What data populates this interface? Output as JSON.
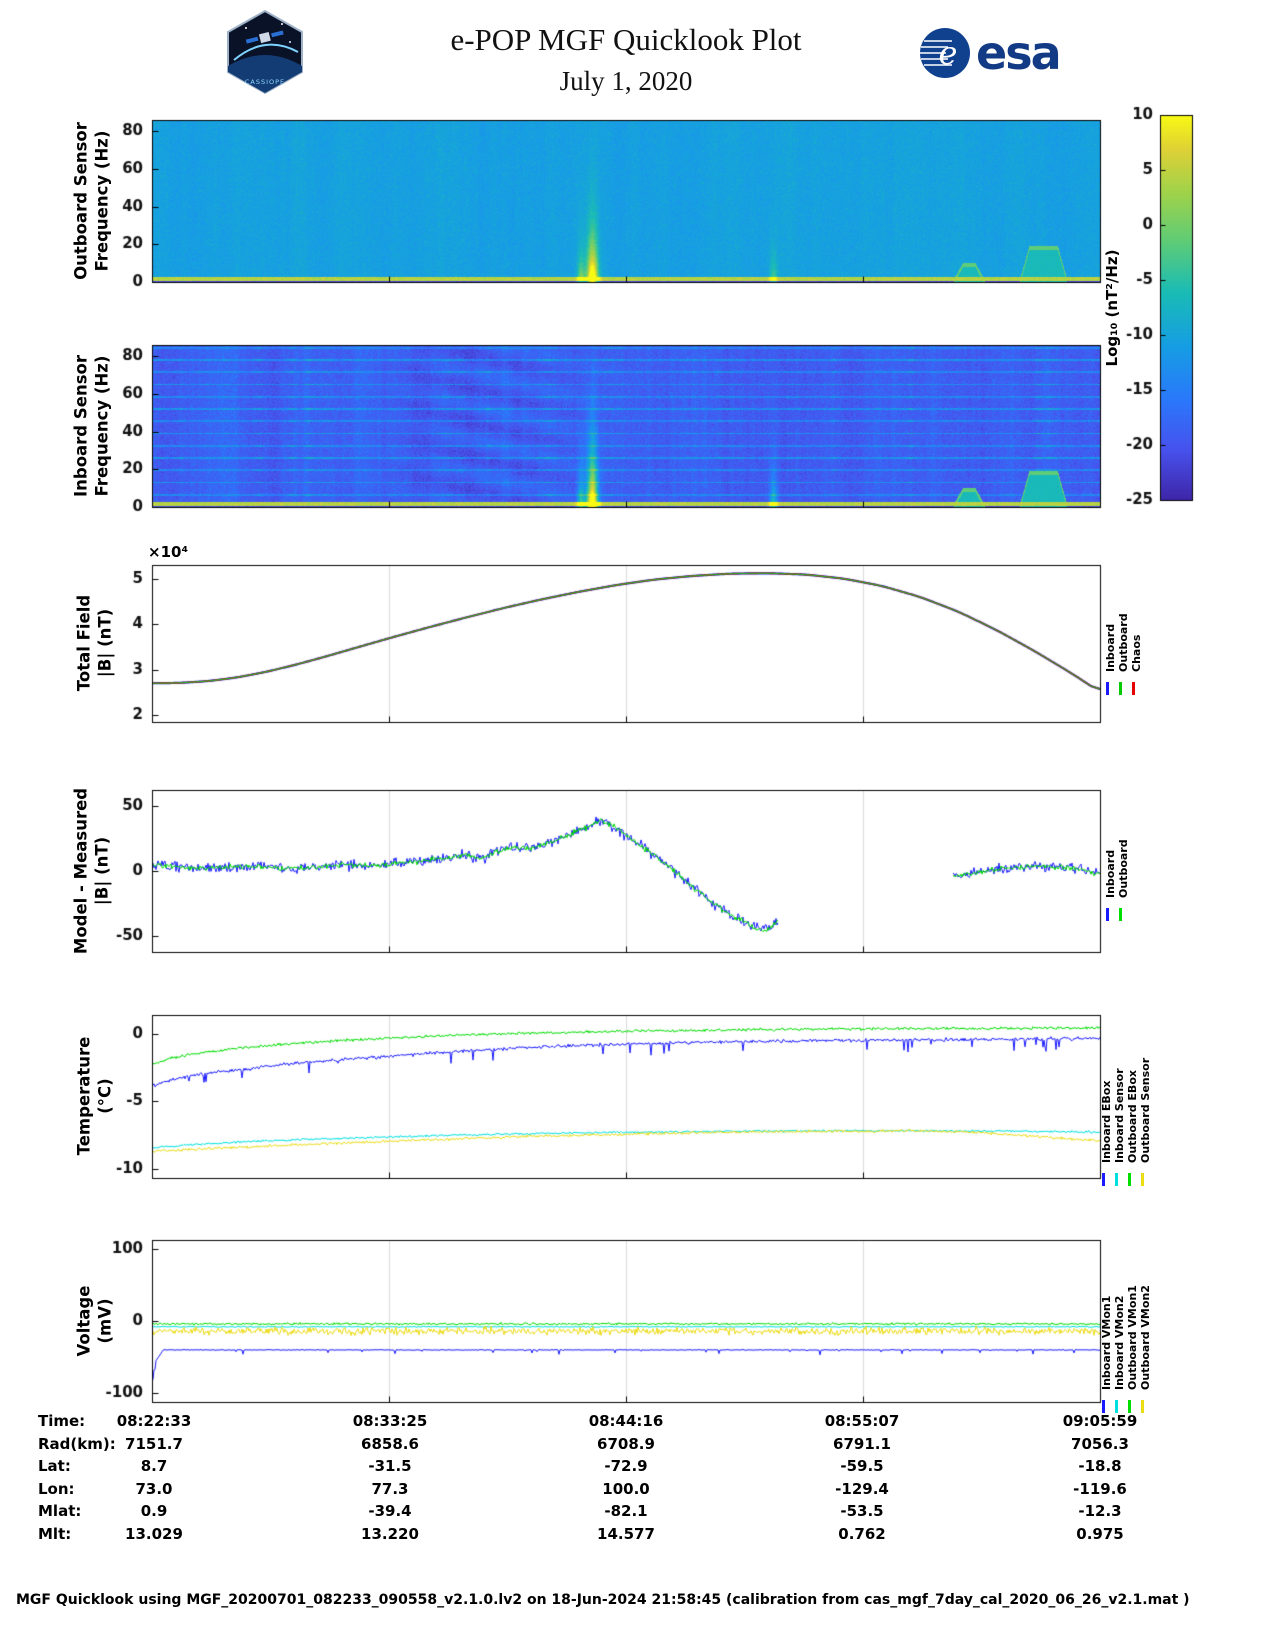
{
  "header": {
    "title": "e-POP MGF Quicklook Plot",
    "date": "July 1, 2020",
    "cassiope_logo_text": "CASSIOPE",
    "esa_logo_text": "esa",
    "esa_emblem_letter": "e"
  },
  "colorbar": {
    "label": "Log₁₀ (nT²/Hz)",
    "ticks": [
      10,
      5,
      0,
      -5,
      -10,
      -15,
      -20,
      -25
    ],
    "range": [
      -25,
      10
    ]
  },
  "chart_data": [
    {
      "id": "outboard_spectrogram",
      "type": "heatmap",
      "ylabel": "Outboard Sensor\nFrequency (Hz)",
      "ylim": [
        0,
        86
      ],
      "yticks": [
        0,
        20,
        40,
        60,
        80
      ],
      "background_level_log": -10.5,
      "noise_level": 1.7,
      "column_noise": 0.8,
      "baseline": {
        "fmax": 2.6,
        "level": 4.5
      },
      "bursts": [
        {
          "t": 0.452,
          "width": 0.004,
          "amp": 14,
          "fscale": 12
        },
        {
          "t": 0.464,
          "width": 0.006,
          "amp": 32,
          "fscale": 18
        },
        {
          "t": 0.655,
          "width": 0.004,
          "amp": 10,
          "fscale": 10
        }
      ],
      "right_features": [
        {
          "t0": 0.845,
          "t1": 0.878,
          "ftop": 9
        },
        {
          "t0": 0.915,
          "t1": 0.965,
          "ftop": 18
        }
      ]
    },
    {
      "id": "inboard_spectrogram",
      "type": "heatmap",
      "ylabel": "Inboard Sensor\nFrequency (Hz)",
      "ylim": [
        0,
        86
      ],
      "yticks": [
        0,
        20,
        40,
        60,
        80
      ],
      "background_level_log": -19,
      "noise_level": 2.4,
      "column_noise": 1.6,
      "interference_line_spacing_hz": 6.5,
      "interference_line_boost": 5.5,
      "texture": true,
      "baseline": {
        "fmax": 2.6,
        "level": 4.5
      },
      "bursts": [
        {
          "t": 0.452,
          "width": 0.004,
          "amp": 18,
          "fscale": 14
        },
        {
          "t": 0.464,
          "width": 0.006,
          "amp": 40,
          "fscale": 22
        },
        {
          "t": 0.655,
          "width": 0.004,
          "amp": 16,
          "fscale": 12
        }
      ],
      "right_features": [
        {
          "t0": 0.845,
          "t1": 0.878,
          "ftop": 9
        },
        {
          "t0": 0.915,
          "t1": 0.965,
          "ftop": 18
        }
      ]
    },
    {
      "id": "total_field",
      "type": "line",
      "ylabel": "Total Field\n|B| (nT)",
      "scale_label": "×10⁴",
      "ylim": [
        1.85,
        5.3
      ],
      "yticks": [
        2,
        3,
        4,
        5
      ],
      "series": [
        {
          "name": "Inboard",
          "color": "#1a1aff"
        },
        {
          "name": "Outboard",
          "color": "#00cc00"
        },
        {
          "name": "Chaos",
          "color": "#e60000"
        }
      ],
      "x": [
        0,
        0.03,
        0.06,
        0.09,
        0.12,
        0.15,
        0.18,
        0.21,
        0.25,
        0.29,
        0.33,
        0.37,
        0.41,
        0.45,
        0.49,
        0.53,
        0.57,
        0.61,
        0.65,
        0.69,
        0.73,
        0.77,
        0.81,
        0.85,
        0.89,
        0.93,
        0.97,
        1.0
      ],
      "values_1e4": [
        2.7,
        2.71,
        2.75,
        2.83,
        2.95,
        3.1,
        3.27,
        3.45,
        3.69,
        3.92,
        4.14,
        4.35,
        4.54,
        4.71,
        4.86,
        4.98,
        5.06,
        5.11,
        5.12,
        5.09,
        5.0,
        4.84,
        4.6,
        4.28,
        3.88,
        3.42,
        2.92,
        2.51
      ]
    },
    {
      "id": "model_minus_measured",
      "type": "line",
      "ylabel": "Model - Measured\n|B| (nT)",
      "ylim": [
        -62,
        62
      ],
      "yticks": [
        -50,
        0,
        50
      ],
      "series": [
        {
          "name": "Inboard",
          "color": "#1a1aff",
          "noise": 6
        },
        {
          "name": "Outboard",
          "color": "#00dd00",
          "noise": 3
        }
      ],
      "segments": [
        {
          "x": [
            0,
            0.02,
            0.05,
            0.08,
            0.11,
            0.14,
            0.17,
            0.2,
            0.23,
            0.26,
            0.29,
            0.31,
            0.33,
            0.345,
            0.36,
            0.38,
            0.4,
            0.42,
            0.435,
            0.45,
            0.462,
            0.472,
            0.482,
            0.495,
            0.51,
            0.53,
            0.55,
            0.57,
            0.59,
            0.61,
            0.63,
            0.645,
            0.652,
            0.66
          ],
          "y": [
            5,
            4,
            2,
            3,
            4,
            2,
            3,
            5,
            4,
            6,
            8,
            10,
            13,
            9,
            14,
            18,
            17,
            22,
            26,
            31,
            34,
            39,
            36,
            30,
            22,
            12,
            0,
            -12,
            -24,
            -33,
            -41,
            -46,
            -44,
            -37
          ]
        },
        {
          "x": [
            0.845,
            0.86,
            0.88,
            0.9,
            0.92,
            0.94,
            0.96,
            0.98,
            1.0
          ],
          "y": [
            -4,
            -2,
            0,
            2,
            3,
            4,
            3,
            1,
            -3
          ]
        }
      ]
    },
    {
      "id": "temperature",
      "type": "line",
      "ylabel": "Temperature\n(°C)",
      "ylim": [
        -10.7,
        1.4
      ],
      "yticks": [
        0,
        -5,
        -10
      ],
      "series": [
        {
          "name": "Inboard EBox",
          "color": "#1a1aff",
          "noise": 0.18,
          "spikes": -0.9,
          "x": [
            0,
            0.02,
            0.05,
            0.1,
            0.15,
            0.2,
            0.3,
            0.4,
            0.5,
            0.6,
            0.7,
            0.8,
            0.9,
            1.0
          ],
          "y": [
            -3.9,
            -3.4,
            -3.0,
            -2.6,
            -2.2,
            -1.9,
            -1.4,
            -1.0,
            -0.75,
            -0.6,
            -0.5,
            -0.45,
            -0.4,
            -0.35
          ]
        },
        {
          "name": "Inboard Sensor",
          "color": "#00e0e0",
          "noise": 0.12,
          "x": [
            0,
            0.05,
            0.1,
            0.2,
            0.3,
            0.4,
            0.5,
            0.6,
            0.7,
            0.8,
            0.9,
            1.0
          ],
          "y": [
            -8.45,
            -8.2,
            -8.0,
            -7.75,
            -7.55,
            -7.4,
            -7.3,
            -7.25,
            -7.2,
            -7.2,
            -7.2,
            -7.3
          ]
        },
        {
          "name": "Outboard EBox",
          "color": "#00dd00",
          "noise": 0.15,
          "x": [
            0,
            0.02,
            0.05,
            0.1,
            0.15,
            0.2,
            0.3,
            0.4,
            0.5,
            0.7,
            0.85,
            1.0
          ],
          "y": [
            -2.3,
            -1.8,
            -1.4,
            -1.0,
            -0.7,
            -0.5,
            -0.15,
            0.05,
            0.2,
            0.35,
            0.4,
            0.45
          ]
        },
        {
          "name": "Outboard Sensor",
          "color": "#ecdc14",
          "noise": 0.15,
          "x": [
            0,
            0.05,
            0.1,
            0.2,
            0.3,
            0.4,
            0.5,
            0.6,
            0.7,
            0.8,
            0.87,
            0.93,
            1.0
          ],
          "y": [
            -8.7,
            -8.55,
            -8.4,
            -8.1,
            -7.85,
            -7.6,
            -7.45,
            -7.3,
            -7.25,
            -7.2,
            -7.3,
            -7.6,
            -7.95
          ]
        }
      ]
    },
    {
      "id": "voltage",
      "type": "line",
      "ylabel": "Voltage\n(mV)",
      "ylim": [
        -112,
        112
      ],
      "yticks": [
        100,
        0,
        -100
      ],
      "series": [
        {
          "name": "Inboard VMon1",
          "color": "#1a1aff",
          "noise": 0.8,
          "spikes": -7,
          "x": [
            0,
            0.004,
            0.012,
            1.0
          ],
          "y": [
            -82,
            -55,
            -40,
            -40
          ]
        },
        {
          "name": "Inboard VMon2",
          "color": "#00e0e0",
          "noise": 1.2,
          "x": [
            0,
            1.0
          ],
          "y": [
            -8,
            -8
          ]
        },
        {
          "name": "Outboard VMon1",
          "color": "#00dd00",
          "noise": 2.2,
          "x": [
            0,
            1.0
          ],
          "y": [
            -4,
            -4
          ]
        },
        {
          "name": "Outboard VMon2",
          "color": "#ecdc14",
          "noise": 8,
          "x": [
            0,
            1.0
          ],
          "y": [
            -14,
            -14
          ]
        }
      ]
    }
  ],
  "table": {
    "rows": [
      {
        "label": "Time:",
        "values": [
          "08:22:33",
          "08:33:25",
          "08:44:16",
          "08:55:07",
          "09:05:59"
        ]
      },
      {
        "label": "Rad(km):",
        "values": [
          "7151.7",
          "6858.6",
          "6708.9",
          "6791.1",
          "7056.3"
        ]
      },
      {
        "label": "Lat:",
        "values": [
          "8.7",
          "-31.5",
          "-72.9",
          "-59.5",
          "-18.8"
        ]
      },
      {
        "label": "Lon:",
        "values": [
          "73.0",
          "77.3",
          "100.0",
          "-129.4",
          "-119.6"
        ]
      },
      {
        "label": "Mlat:",
        "values": [
          "0.9",
          "-39.4",
          "-82.1",
          "-53.5",
          "-12.3"
        ]
      },
      {
        "label": "Mlt:",
        "values": [
          "13.029",
          "13.220",
          "14.577",
          "0.762",
          "0.975"
        ]
      }
    ]
  },
  "footer": "MGF Quicklook using MGF_20200701_082233_090558_v2.1.0.lv2 on 18-Jun-2024 21:58:45 (calibration from cas_mgf_7day_cal_2020_06_26_v2.1.mat )"
}
